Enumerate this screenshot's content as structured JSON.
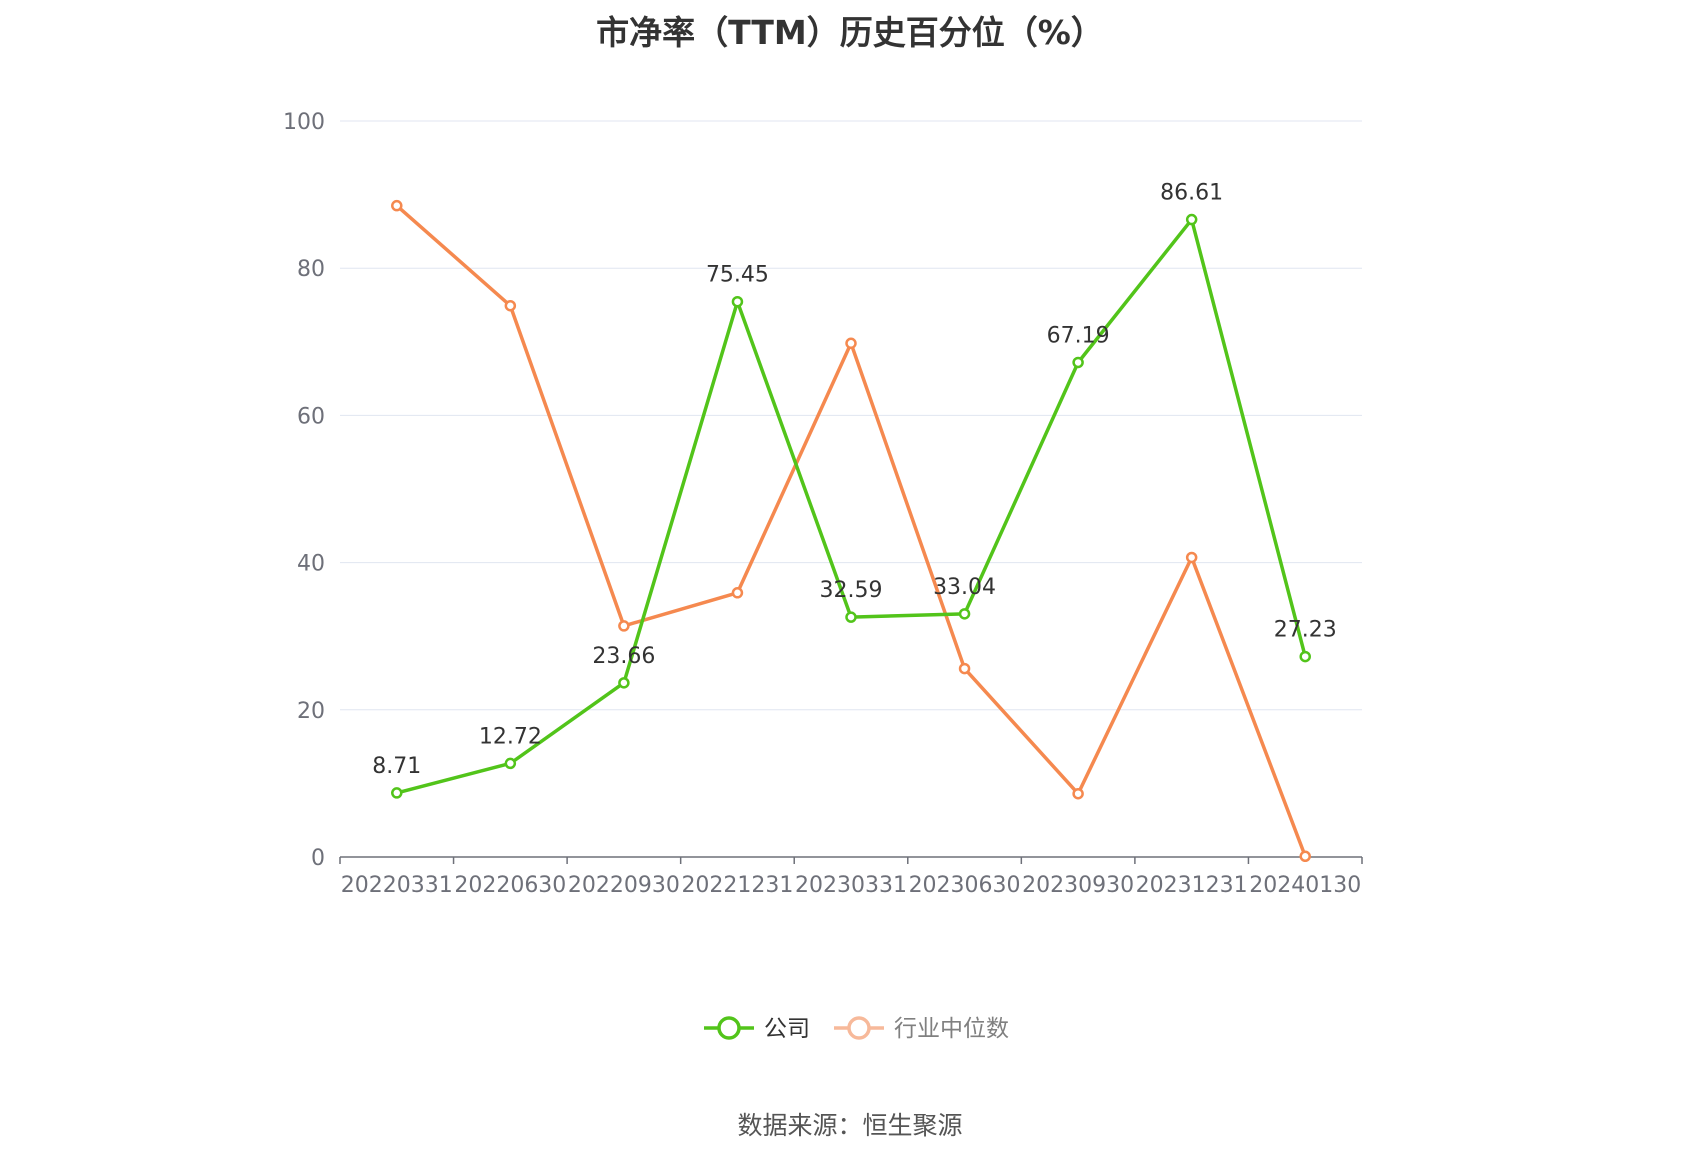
{
  "chart_data": {
    "type": "line",
    "title": "市净率（TTM）历史百分位（%）",
    "xlabel": "",
    "ylabel": "",
    "categories": [
      "20220331",
      "20220630",
      "20220930",
      "20221231",
      "20230331",
      "20230630",
      "20230930",
      "20231231",
      "20240130"
    ],
    "ylim": [
      0,
      100
    ],
    "yticks": [
      0,
      20,
      40,
      60,
      80,
      100
    ],
    "grid": true,
    "legend": "bottom-center",
    "series": [
      {
        "name": "公司",
        "color": "#52c41a",
        "show_labels": true,
        "values": [
          8.71,
          12.72,
          23.66,
          75.45,
          32.59,
          33.04,
          67.19,
          86.61,
          27.23
        ]
      },
      {
        "name": "行业中位数",
        "color": "#f5894f",
        "legend_color": "#f7b99a",
        "show_labels": false,
        "values": [
          88.5,
          74.9,
          31.4,
          35.9,
          69.8,
          25.6,
          8.6,
          40.7,
          0.1
        ]
      }
    ]
  },
  "source": "数据来源：恒生聚源"
}
